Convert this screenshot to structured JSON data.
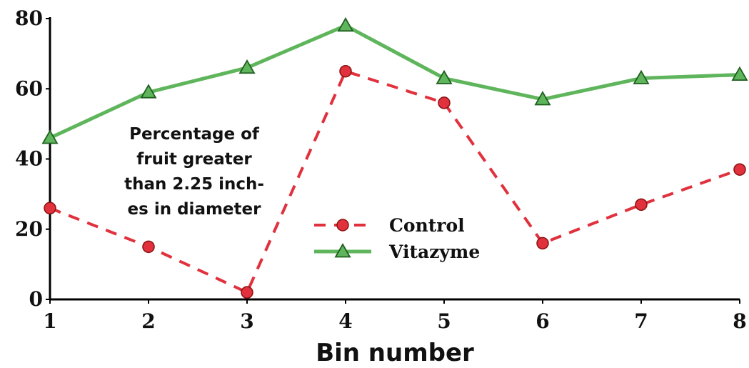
{
  "chart_data": {
    "type": "line",
    "title": "",
    "xlabel": "Bin number",
    "ylabel": "",
    "x": [
      1,
      2,
      3,
      4,
      5,
      6,
      7,
      8
    ],
    "ylim": [
      0,
      80
    ],
    "y_ticks": [
      0,
      20,
      40,
      60,
      80
    ],
    "grid": false,
    "legend_position": "center-right",
    "annotation": [
      "Percentage of",
      "fruit greater",
      "than 2.25 inch-",
      "es in diameter"
    ],
    "series": [
      {
        "name": "Control",
        "values": [
          26,
          15,
          2,
          65,
          56,
          16,
          27,
          37
        ],
        "color": "#e0313d",
        "line_style": "dashed",
        "marker": "circle"
      },
      {
        "name": "Vitazyme",
        "values": [
          46,
          59,
          66,
          78,
          63,
          57,
          63,
          64
        ],
        "color": "#5fb55c",
        "line_style": "solid",
        "marker": "triangle"
      }
    ]
  }
}
